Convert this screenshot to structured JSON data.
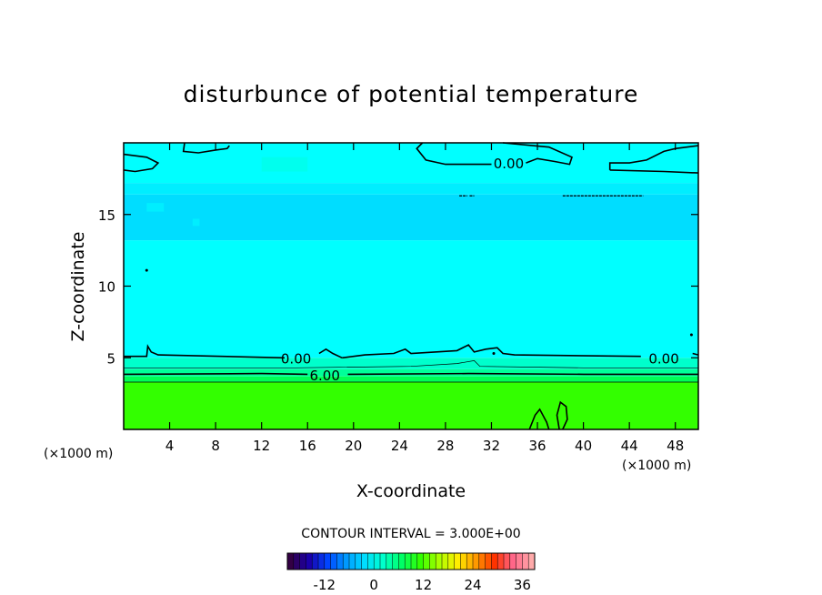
{
  "chart_data": {
    "type": "contour",
    "title": "disturbunce of potential temperature",
    "xlabel": "X-coordinate",
    "ylabel": "Z-coordinate",
    "x_unit": "(×1000 m)",
    "y_unit": "(×1000 m)",
    "xlim": [
      0,
      50
    ],
    "ylim": [
      0,
      20
    ],
    "x_ticks": [
      4,
      8,
      12,
      16,
      20,
      24,
      28,
      32,
      36,
      40,
      44,
      48
    ],
    "y_ticks": [
      5,
      10,
      15
    ],
    "contour_interval_text": "CONTOUR INTERVAL = 3.000E+00",
    "contour_labels": [
      {
        "text": "0.00",
        "x": 33.5,
        "z": 18.6
      },
      {
        "text": "0.00",
        "x": 15.0,
        "z": 5.0
      },
      {
        "text": "0.00",
        "x": 47.0,
        "z": 5.0
      },
      {
        "text": "6.00",
        "x": 17.5,
        "z": 3.8
      }
    ],
    "layers": [
      {
        "z": [
          0,
          3.3
        ],
        "color": "#33ff00",
        "label": "~9"
      },
      {
        "z": [
          3.3,
          3.7
        ],
        "color": "#00ff55"
      },
      {
        "z": [
          3.7,
          4.2
        ],
        "color": "#00ff99"
      },
      {
        "z": [
          4.2,
          5.0
        ],
        "color": "#00ffcc"
      },
      {
        "z": [
          5.0,
          13.2
        ],
        "color": "#00ffff",
        "label": "~0"
      },
      {
        "z": [
          13.2,
          16.4
        ],
        "color": "#00ddff",
        "label": "~-1"
      },
      {
        "z": [
          16.4,
          17.2
        ],
        "color": "#00eeff"
      },
      {
        "z": [
          17.2,
          20.0
        ],
        "color": "#00ffff"
      }
    ],
    "colorbar": {
      "vmin": -21,
      "vmax": 39,
      "tick_labels": [
        "-12",
        "0",
        "12",
        "24",
        "36"
      ],
      "tick_values": [
        -12,
        0,
        12,
        24,
        36
      ]
    }
  }
}
